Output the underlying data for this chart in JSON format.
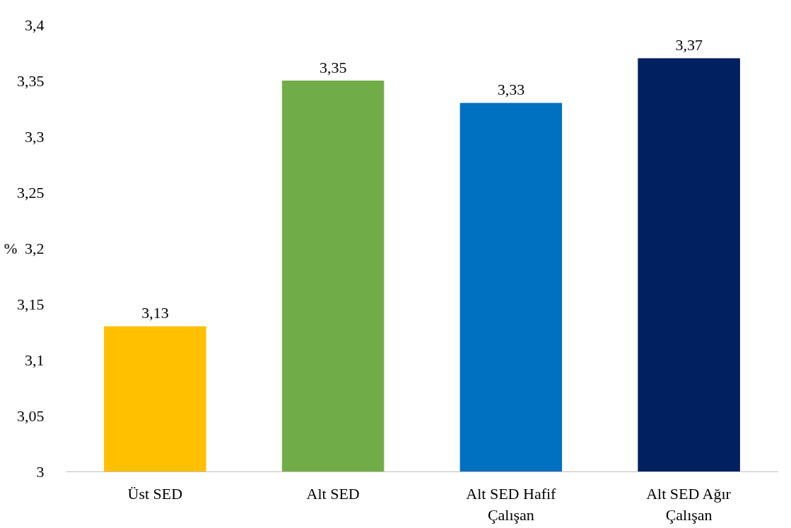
{
  "chart_data": {
    "type": "bar",
    "ylabel": "%",
    "categories": [
      "Üst SED",
      "Alt SED",
      "Alt SED Hafif\nÇalışan",
      "Alt SED Ağır\nÇalışan"
    ],
    "values": [
      3.13,
      3.35,
      3.33,
      3.37
    ],
    "colors": [
      "#ffc000",
      "#70ad47",
      "#0070c0",
      "#002060"
    ],
    "value_labels": [
      "3,13",
      "3,35",
      "3,33",
      "3,37"
    ],
    "ylim": [
      3,
      3.4
    ],
    "yticks": [
      {
        "value": 3,
        "label": "3"
      },
      {
        "value": 3.05,
        "label": "3,05"
      },
      {
        "value": 3.1,
        "label": "3,1"
      },
      {
        "value": 3.15,
        "label": "3,15"
      },
      {
        "value": 3.2,
        "label": "3,2"
      },
      {
        "value": 3.25,
        "label": "3,25"
      },
      {
        "value": 3.3,
        "label": "3,3"
      },
      {
        "value": 3.35,
        "label": "3,35"
      },
      {
        "value": 3.4,
        "label": "3,4"
      }
    ],
    "grid": false
  }
}
